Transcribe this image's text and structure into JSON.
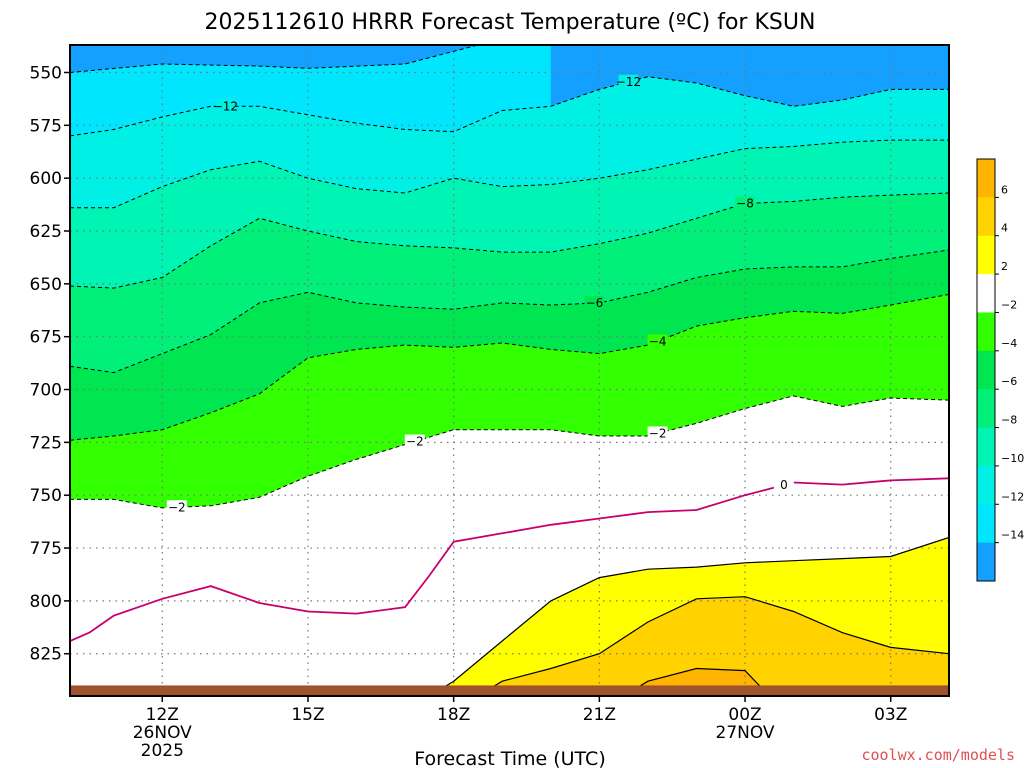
{
  "chart_data": {
    "type": "contour",
    "title": "2025112610 HRRR Forecast Temperature (ºC) for KSUN",
    "xlabel": "Forecast Time (UTC)",
    "y_ticks": [
      "550",
      "575",
      "600",
      "625",
      "650",
      "675",
      "700",
      "725",
      "750",
      "775",
      "800",
      "825"
    ],
    "y_tick_values": [
      550,
      575,
      600,
      625,
      650,
      675,
      700,
      725,
      750,
      775,
      800,
      825
    ],
    "ylim": [
      537,
      845
    ],
    "xlim": [
      -1.9,
      16.2
    ],
    "y_scale": "linear, pressure increasing downward (hPa)",
    "x_ticks": [
      {
        "hour": 0,
        "label": "12Z",
        "sub1": "26NOV",
        "sub2": "2025"
      },
      {
        "hour": 3,
        "label": "15Z",
        "sub1": "",
        "sub2": ""
      },
      {
        "hour": 6,
        "label": "18Z",
        "sub1": "",
        "sub2": ""
      },
      {
        "hour": 9,
        "label": "21Z",
        "sub1": "",
        "sub2": ""
      },
      {
        "hour": 12,
        "label": "00Z",
        "sub1": "27NOV",
        "sub2": ""
      },
      {
        "hour": 15,
        "label": "03Z",
        "sub1": "",
        "sub2": ""
      }
    ],
    "grid": "dotted",
    "colorbar": {
      "position": "right",
      "labels": [
        "6",
        "4",
        "2",
        "−2",
        "−4",
        "−6",
        "−8",
        "−10",
        "−12",
        "−14"
      ],
      "colors": [
        "#ffb400",
        "#ffd200",
        "#ffff00",
        "#ffffff",
        "#32ff00",
        "#00e650",
        "#00f07a",
        "#00f5b4",
        "#00f0e6",
        "#00e6ff",
        "#14a0ff"
      ]
    },
    "isotherms": [
      {
        "temp": -14,
        "label": "",
        "x": [
          -1.9,
          0,
          2,
          3,
          5,
          6.5,
          8
        ],
        "p": [
          550,
          546,
          547,
          548,
          546,
          537,
          537
        ]
      },
      {
        "temp": -12,
        "label": "−12",
        "x": [
          -1.9,
          -1,
          0,
          1,
          2,
          3,
          4,
          5,
          6,
          7,
          8,
          9,
          10,
          11,
          12,
          13,
          14,
          15,
          16.2
        ],
        "p": [
          580,
          577,
          571,
          566,
          566,
          570,
          574,
          577,
          578,
          568,
          566,
          558,
          552,
          555,
          561,
          566,
          563,
          558,
          558
        ]
      },
      {
        "temp": -10,
        "label": "",
        "x": [
          -1.9,
          -1,
          0,
          1,
          2,
          3,
          4,
          5,
          6,
          7,
          8,
          9,
          10,
          11,
          12,
          13,
          14,
          15,
          16.2
        ],
        "p": [
          614,
          614,
          604,
          596,
          592,
          600,
          605,
          607,
          600,
          604,
          603,
          600,
          596,
          591,
          586,
          585,
          583,
          582,
          582
        ]
      },
      {
        "temp": -8,
        "label": "−8",
        "x": [
          -1.9,
          -1,
          0,
          1,
          2,
          3,
          4,
          5,
          6,
          7,
          8,
          9,
          10,
          11,
          12,
          13,
          14,
          15,
          16.2
        ],
        "p": [
          651,
          652,
          647,
          632,
          619,
          625,
          630,
          632,
          633,
          635,
          635,
          631,
          626,
          619,
          612,
          611,
          609,
          608,
          607
        ]
      },
      {
        "temp": -6,
        "label": "−6",
        "x": [
          -1.9,
          -1,
          0,
          1,
          2,
          3,
          4,
          5,
          6,
          7,
          8,
          9,
          10,
          11,
          12,
          13,
          14,
          15,
          16.2
        ],
        "p": [
          689,
          692,
          683,
          674,
          659,
          654,
          659,
          661,
          662,
          659,
          660,
          659,
          654,
          647,
          643,
          642,
          642,
          638,
          634
        ]
      },
      {
        "temp": -4,
        "label": "−4",
        "x": [
          -1.9,
          -1,
          0,
          1,
          2,
          3,
          4,
          5,
          6,
          7,
          8,
          9,
          10,
          11,
          12,
          13,
          14,
          15,
          16.2
        ],
        "p": [
          724,
          722,
          719,
          711,
          702,
          685,
          681,
          679,
          680,
          678,
          681,
          683,
          679,
          670,
          666,
          663,
          664,
          660,
          655
        ]
      },
      {
        "temp": -2,
        "label": "−2",
        "x": [
          -1.9,
          -1,
          0,
          1,
          2,
          3,
          4,
          5,
          6,
          7,
          8,
          9,
          10,
          11,
          12,
          13,
          14,
          15,
          16.2
        ],
        "p": [
          752,
          752,
          756,
          755,
          751,
          741,
          733,
          726,
          719,
          719,
          719,
          722,
          722,
          716,
          709,
          703,
          708,
          704,
          705
        ]
      },
      {
        "temp": 0,
        "label": "0",
        "x": [
          -1.9,
          -1.5,
          -1,
          0,
          1,
          2,
          3,
          4,
          5,
          5.5,
          6,
          7,
          8,
          9,
          10,
          11,
          12,
          13,
          14,
          15,
          16.2
        ],
        "p": [
          819,
          815,
          807,
          799,
          793,
          801,
          805,
          806,
          803,
          788,
          772,
          768,
          764,
          761,
          758,
          757,
          750,
          744,
          745,
          743,
          742
        ]
      },
      {
        "temp": 2,
        "label": "",
        "x": [
          5.5,
          6,
          7,
          8,
          9,
          10,
          11,
          12,
          13,
          14,
          15,
          16.2
        ],
        "p": [
          845,
          838,
          819,
          800,
          789,
          785,
          784,
          782,
          781,
          780,
          779,
          770
        ]
      },
      {
        "temp": 4,
        "label": "",
        "x": [
          6.5,
          7,
          8,
          9,
          10,
          11,
          12,
          13,
          14,
          15,
          16.2
        ],
        "p": [
          845,
          838,
          832,
          825,
          810,
          799,
          798,
          805,
          815,
          822,
          825
        ]
      },
      {
        "temp": 6,
        "label": "",
        "x": [
          9.5,
          10,
          11,
          12,
          12.5
        ],
        "p": [
          845,
          838,
          832,
          833,
          845
        ]
      }
    ],
    "terrain_pressure": 840
  },
  "credit": "coolwx.com/models"
}
